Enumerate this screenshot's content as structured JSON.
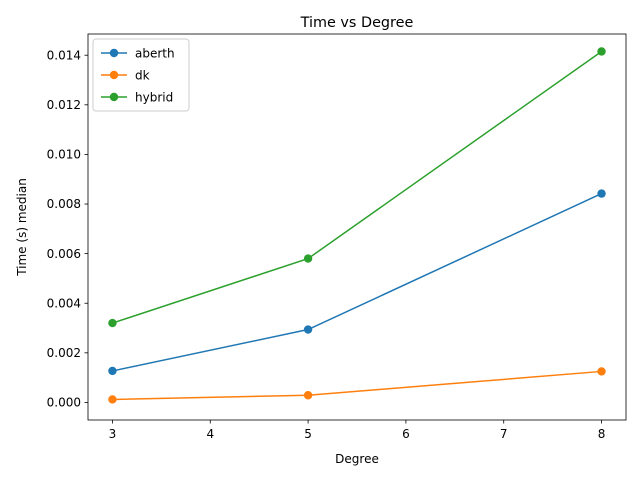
{
  "chart_data": {
    "type": "line",
    "title": "Time vs Degree",
    "xlabel": "Degree",
    "ylabel": "Time (s) median",
    "x": [
      3,
      5,
      8
    ],
    "xlim": [
      2.75,
      8.25
    ],
    "ylim": [
      -0.000708,
      0.014855
    ],
    "xticks": [
      3,
      4,
      5,
      6,
      7,
      8
    ],
    "xtick_labels": [
      "3",
      "4",
      "5",
      "6",
      "7",
      "8"
    ],
    "yticks": [
      0,
      0.002,
      0.004,
      0.006,
      0.008,
      0.01,
      0.012,
      0.014
    ],
    "ytick_labels": [
      "0.000",
      "0.002",
      "0.004",
      "0.006",
      "0.008",
      "0.010",
      "0.012",
      "0.014"
    ],
    "grid": false,
    "legend_position": "top-left",
    "series": [
      {
        "name": "aberth",
        "color": "#1f77b4",
        "values": [
          0.00127,
          0.00294,
          0.00842
        ]
      },
      {
        "name": "dk",
        "color": "#ff7f0e",
        "values": [
          0.00012,
          0.00029,
          0.00125
        ]
      },
      {
        "name": "hybrid",
        "color": "#2ca02c",
        "values": [
          0.0032,
          0.0058,
          0.01415
        ]
      }
    ]
  }
}
